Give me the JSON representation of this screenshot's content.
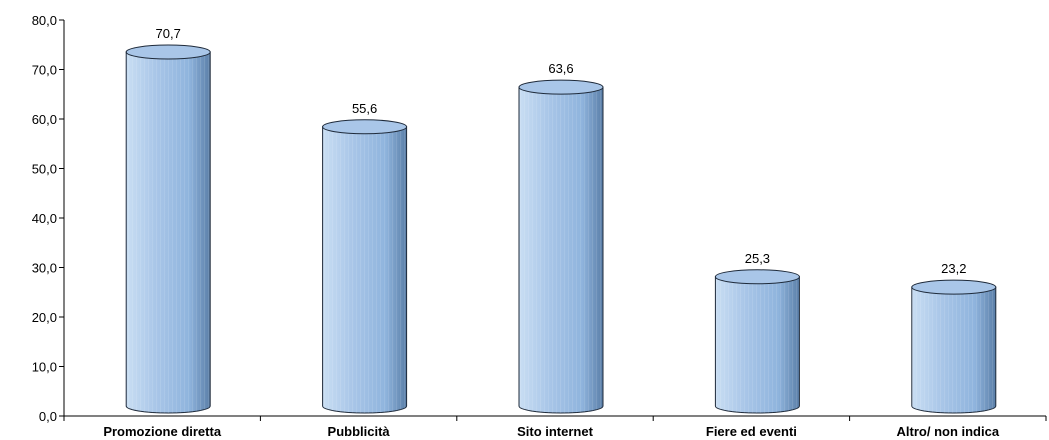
{
  "chart_data": {
    "type": "bar",
    "style": "3d-cylinder",
    "categories": [
      "Promozione diretta",
      "Pubblicità",
      "Sito internet",
      "Fiere ed eventi",
      "Altro/ non indica"
    ],
    "values": [
      70.7,
      55.6,
      63.6,
      25.3,
      23.2
    ],
    "data_labels": [
      "70,7",
      "55,6",
      "63,6",
      "25,3",
      "23,2"
    ],
    "ylim": [
      0,
      80
    ],
    "y_ticks": [
      0,
      10,
      20,
      30,
      40,
      50,
      60,
      70,
      80
    ],
    "y_tick_labels": [
      "0,0",
      "10,0",
      "20,0",
      "30,0",
      "40,0",
      "50,0",
      "60,0",
      "70,0",
      "80,0"
    ],
    "title": "",
    "xlabel": "",
    "ylabel": "",
    "grid": false,
    "legend": "none",
    "colors": {
      "bar_light": "#c9def3",
      "bar_mid": "#8fb4dd",
      "bar_dark": "#5b7fa8",
      "top_face": "#a9c6e8",
      "outline": "#1e2a3a"
    }
  }
}
